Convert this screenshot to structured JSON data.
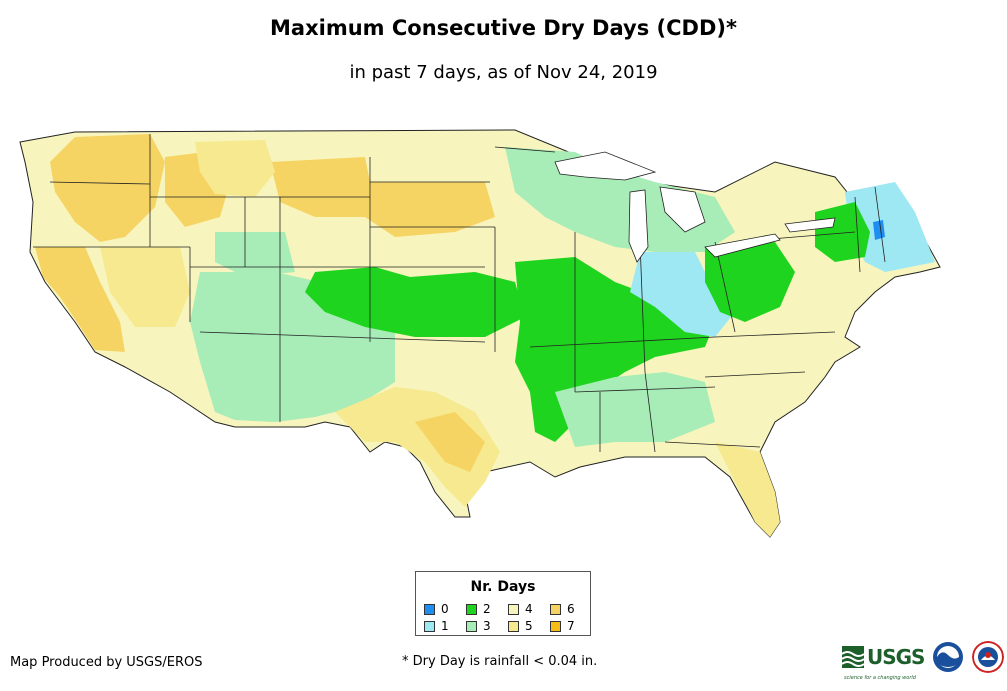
{
  "header": {
    "title": "Maximum Consecutive Dry Days (CDD)*",
    "subtitle": "in past 7 days, as of Nov 24, 2019"
  },
  "legend": {
    "title": "Nr. Days",
    "items": [
      {
        "label": "0",
        "color": "#1f8ef1"
      },
      {
        "label": "2",
        "color": "#1fd41f"
      },
      {
        "label": "4",
        "color": "#f7f5bd"
      },
      {
        "label": "6",
        "color": "#f6d463"
      },
      {
        "label": "1",
        "color": "#9ee8f4"
      },
      {
        "label": "3",
        "color": "#a8ecb8"
      },
      {
        "label": "5",
        "color": "#f6e98f"
      },
      {
        "label": "7",
        "color": "#f5bd18"
      }
    ]
  },
  "map": {
    "region": "Contiguous United States",
    "background_class": "4",
    "zones": [
      {
        "name": "pacific-northwest",
        "value": 6
      },
      {
        "name": "california",
        "value": 6
      },
      {
        "name": "northern-rockies",
        "value": 4
      },
      {
        "name": "northern-plains",
        "value": 6
      },
      {
        "name": "southwest",
        "value": 3
      },
      {
        "name": "central-plains",
        "value": 2
      },
      {
        "name": "mississippi-valley",
        "value": 2
      },
      {
        "name": "ohio-valley",
        "value": 1
      },
      {
        "name": "great-lakes",
        "value": 3
      },
      {
        "name": "new-england",
        "value": 1
      },
      {
        "name": "maine-coast",
        "value": 0
      },
      {
        "name": "texas",
        "value": 5
      },
      {
        "name": "southeast",
        "value": 4
      },
      {
        "name": "florida",
        "value": 5
      }
    ]
  },
  "footer": {
    "credit": "Map Produced by USGS/EROS",
    "footnote": "* Dry Day is rainfall < 0.04 in.",
    "usgs_logo": "USGS",
    "usgs_tagline": "science for a changing world"
  },
  "colors": {
    "state_border": "#222222"
  }
}
